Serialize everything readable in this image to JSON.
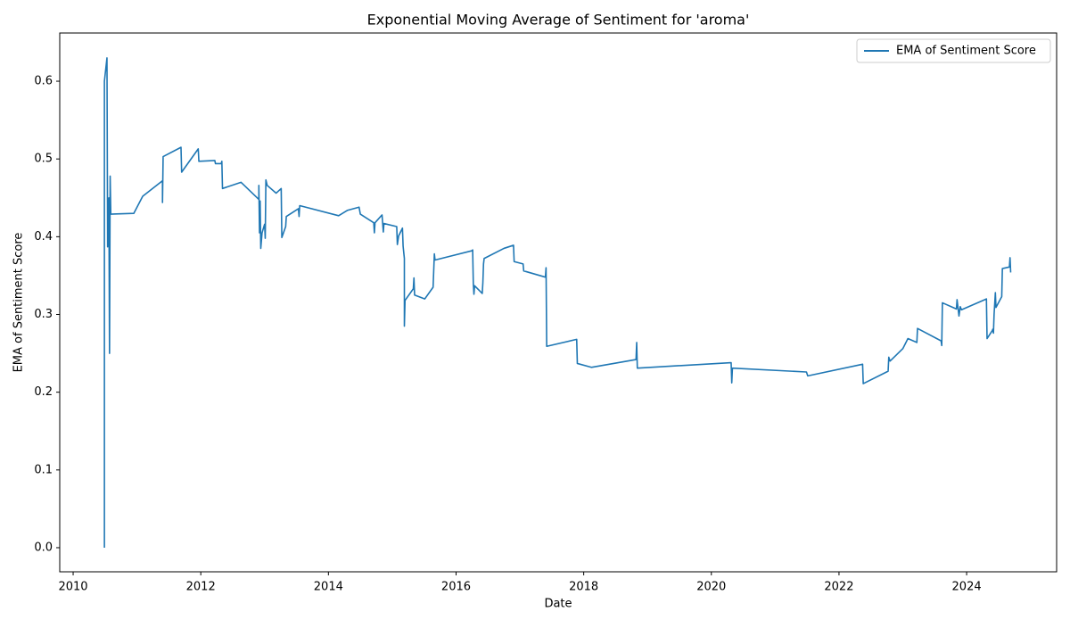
{
  "chart_data": {
    "type": "line",
    "title": "Exponential Moving Average of Sentiment for 'aroma'",
    "xlabel": "Date",
    "ylabel": "EMA of Sentiment Score",
    "legend": "upper right",
    "grid": false,
    "xlim": [
      2009.79,
      2025.41
    ],
    "xticks": [
      2010,
      2012,
      2014,
      2016,
      2018,
      2020,
      2022,
      2024
    ],
    "ylim": [
      -0.031,
      0.662
    ],
    "yticks": [
      {
        "value": 0,
        "label": "0.0"
      },
      0.1,
      0.2,
      0.3,
      0.4,
      0.5,
      0.6
    ],
    "x": [
      2010.49,
      2010.49,
      2010.53,
      2010.54,
      2010.56,
      2010.57,
      2010.58,
      2010.59,
      2010.95,
      2011.09,
      2011.4,
      2011.4,
      2011.41,
      2011.69,
      2011.7,
      2011.96,
      2011.97,
      2012.22,
      2012.23,
      2012.32,
      2012.33,
      2012.34,
      2012.63,
      2012.91,
      2012.91,
      2012.92,
      2012.93,
      2012.94,
      2012.96,
      2013.0,
      2013.01,
      2013.02,
      2013.04,
      2013.18,
      2013.26,
      2013.27,
      2013.33,
      2013.34,
      2013.53,
      2013.54,
      2013.55,
      2014.16,
      2014.3,
      2014.48,
      2014.5,
      2014.71,
      2014.72,
      2014.73,
      2014.84,
      2014.86,
      2014.87,
      2015.07,
      2015.08,
      2015.1,
      2015.16,
      2015.17,
      2015.19,
      2015.19,
      2015.2,
      2015.33,
      2015.34,
      2015.35,
      2015.51,
      2015.64,
      2015.66,
      2015.67,
      2016.25,
      2016.26,
      2016.27,
      2016.28,
      2016.29,
      2016.41,
      2016.42,
      2016.43,
      2016.44,
      2016.75,
      2016.9,
      2016.91,
      2017.05,
      2017.06,
      2017.4,
      2017.41,
      2017.42,
      2017.89,
      2017.9,
      2018.12,
      2018.82,
      2018.83,
      2018.84,
      2020.31,
      2020.32,
      2020.33,
      2021.49,
      2021.51,
      2022.37,
      2022.38,
      2022.77,
      2022.78,
      2022.8,
      2023.0,
      2023.08,
      2023.22,
      2023.23,
      2023.6,
      2023.61,
      2023.62,
      2023.84,
      2023.85,
      2023.88,
      2023.9,
      2023.92,
      2024.31,
      2024.32,
      2024.4,
      2024.41,
      2024.42,
      2024.43,
      2024.45,
      2024.46,
      2024.55,
      2024.56,
      2024.67,
      2024.68,
      2024.69
    ],
    "series": [
      {
        "name": "EMA of Sentiment Score",
        "color": "#1f77b4",
        "values": [
          0.0,
          0.6,
          0.63,
          0.387,
          0.45,
          0.25,
          0.478,
          0.429,
          0.43,
          0.452,
          0.472,
          0.444,
          0.503,
          0.515,
          0.483,
          0.513,
          0.497,
          0.498,
          0.494,
          0.494,
          0.497,
          0.462,
          0.47,
          0.448,
          0.466,
          0.405,
          0.446,
          0.385,
          0.405,
          0.416,
          0.398,
          0.473,
          0.466,
          0.456,
          0.462,
          0.399,
          0.413,
          0.426,
          0.436,
          0.426,
          0.44,
          0.427,
          0.434,
          0.438,
          0.429,
          0.418,
          0.405,
          0.418,
          0.428,
          0.406,
          0.417,
          0.413,
          0.39,
          0.401,
          0.411,
          0.388,
          0.372,
          0.285,
          0.318,
          0.333,
          0.347,
          0.325,
          0.32,
          0.335,
          0.378,
          0.37,
          0.382,
          0.383,
          0.34,
          0.326,
          0.337,
          0.327,
          0.341,
          0.365,
          0.372,
          0.385,
          0.389,
          0.368,
          0.365,
          0.356,
          0.348,
          0.36,
          0.259,
          0.268,
          0.237,
          0.232,
          0.242,
          0.264,
          0.231,
          0.238,
          0.212,
          0.231,
          0.226,
          0.221,
          0.236,
          0.211,
          0.227,
          0.245,
          0.24,
          0.256,
          0.269,
          0.264,
          0.282,
          0.266,
          0.26,
          0.315,
          0.307,
          0.319,
          0.298,
          0.31,
          0.306,
          0.32,
          0.269,
          0.279,
          0.281,
          0.276,
          0.3,
          0.328,
          0.309,
          0.323,
          0.359,
          0.361,
          0.373,
          0.354
        ]
      }
    ]
  }
}
